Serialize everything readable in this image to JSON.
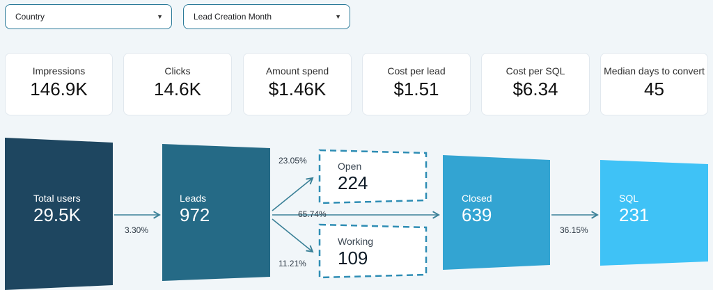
{
  "filters": {
    "country": {
      "label": "Country"
    },
    "lead_month": {
      "label": "Lead Creation Month"
    }
  },
  "kpis": [
    {
      "label": "Impressions",
      "value": "146.9K"
    },
    {
      "label": "Clicks",
      "value": "14.6K"
    },
    {
      "label": "Amount spend",
      "value": "$1.46K"
    },
    {
      "label": "Cost per lead",
      "value": "$1.51"
    },
    {
      "label": "Cost per SQL",
      "value": "$6.34"
    },
    {
      "label": "Median days to convert",
      "value": "45"
    }
  ],
  "funnel": {
    "total_users": {
      "label": "Total users",
      "value": "29.5K"
    },
    "leads": {
      "label": "Leads",
      "value": "972"
    },
    "open": {
      "label": "Open",
      "value": "224"
    },
    "working": {
      "label": "Working",
      "value": "109"
    },
    "closed": {
      "label": "Closed",
      "value": "639"
    },
    "sql": {
      "label": "SQL",
      "value": "231"
    },
    "rates": {
      "users_to_leads": "3.30%",
      "leads_to_open": "23.05%",
      "leads_to_closed": "65.74%",
      "leads_to_working": "11.21%",
      "closed_to_sql": "36.15%"
    }
  },
  "colors": {
    "total_users": "#1e4660",
    "leads": "#256a86",
    "closed": "#33a4d2",
    "sql": "#3fc2f6",
    "arrow": "#3a8097",
    "dashed_border": "#2e8db4"
  }
}
